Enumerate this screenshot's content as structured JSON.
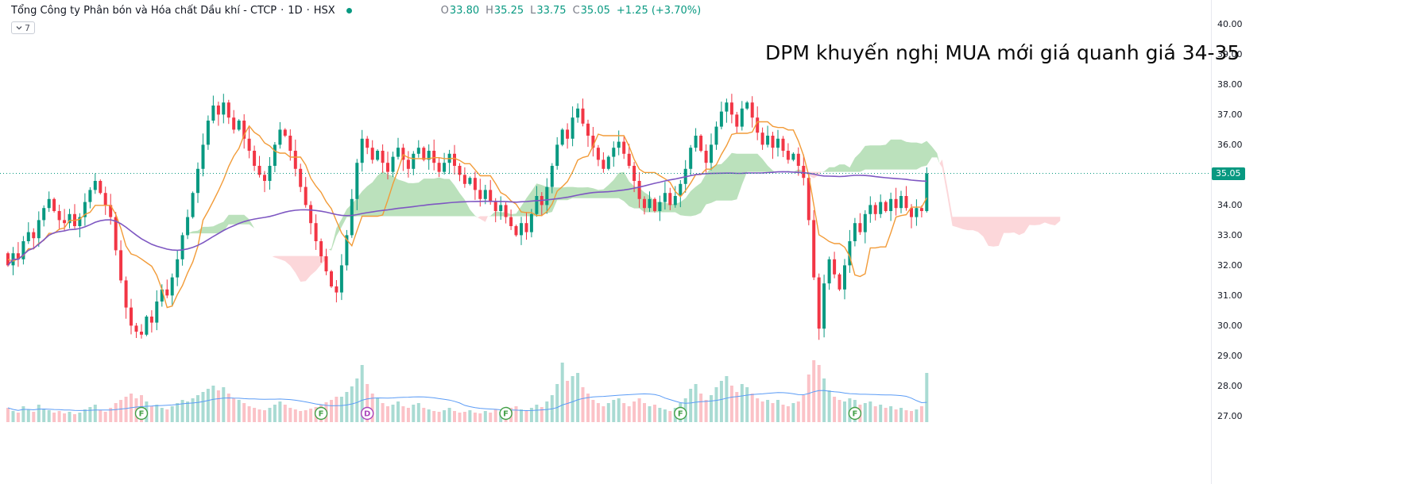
{
  "header": {
    "symbol": "Tổng Công ty Phân bón và Hóa chất Dầu khí - CTCP",
    "sep": "·",
    "timeframe": "1D",
    "exchange": "HSX",
    "indicator_count": "7",
    "ohlc": {
      "o_label": "O",
      "open": "33.80",
      "h_label": "H",
      "high": "35.25",
      "l_label": "L",
      "low": "33.75",
      "c_label": "C",
      "close": "35.05",
      "change": "+1.25 (+3.70%)"
    }
  },
  "annotation": "DPM khuyến nghị MUA mới giá quanh giá 34-35",
  "last_price": "35.05",
  "price_axis": [
    "40.00",
    "39.00",
    "38.00",
    "37.00",
    "36.00",
    "35.00",
    "34.00",
    "33.00",
    "32.00",
    "31.00",
    "30.00",
    "29.00",
    "28.00",
    "27.00"
  ],
  "colors": {
    "up": "#089981",
    "down": "#f23645",
    "vol_up": "rgba(8,153,129,0.35)",
    "vol_down": "rgba(242,54,69,0.3)",
    "cloud_up": "rgba(76,175,80,0.38)",
    "cloud_down": "rgba(242,54,69,0.2)",
    "tenkan": "#f29b38",
    "slow_ma": "#7e57c2",
    "vol_ma": "#5b9cf6",
    "last_price": "#089981",
    "marker_f": "#43a047",
    "marker_d": "#ab47bc"
  },
  "chart_data": {
    "type": "candlestick",
    "symbol": "DPM",
    "title": "Tổng Công ty Phân bón và Hóa chất Dầu khí - CTCP",
    "timeframe": "1D",
    "exchange": "HSX",
    "ylim": [
      27,
      40
    ],
    "grid": "off",
    "last": {
      "open": 33.8,
      "high": 35.25,
      "low": 33.75,
      "close": 35.05,
      "change_abs": 1.25,
      "change_pct": 3.7
    },
    "closes": [
      32.0,
      32.4,
      32.2,
      32.8,
      33.1,
      32.9,
      33.5,
      33.9,
      34.2,
      33.8,
      33.5,
      33.4,
      33.7,
      33.3,
      33.6,
      34.1,
      34.5,
      34.8,
      34.4,
      34.0,
      33.6,
      32.5,
      31.5,
      30.6,
      30.0,
      29.8,
      29.7,
      30.3,
      30.1,
      30.8,
      31.2,
      31.0,
      31.6,
      32.2,
      33.0,
      33.6,
      34.4,
      35.2,
      36.0,
      36.8,
      37.3,
      37.0,
      37.4,
      36.9,
      36.5,
      36.8,
      36.2,
      35.8,
      35.3,
      35.0,
      34.8,
      35.3,
      36.0,
      36.5,
      36.3,
      35.8,
      35.2,
      34.6,
      34.0,
      33.4,
      32.8,
      32.3,
      31.8,
      31.3,
      31.1,
      32.0,
      33.0,
      34.2,
      35.4,
      36.2,
      35.9,
      35.5,
      35.8,
      35.4,
      35.1,
      35.6,
      35.9,
      35.5,
      35.2,
      35.7,
      35.9,
      35.5,
      35.8,
      35.4,
      35.1,
      35.4,
      35.7,
      35.3,
      35.0,
      34.7,
      34.9,
      34.5,
      34.2,
      34.5,
      34.1,
      33.8,
      34.0,
      33.6,
      33.3,
      33.0,
      33.4,
      33.1,
      33.7,
      34.3,
      34.0,
      34.6,
      35.3,
      36.0,
      36.5,
      36.2,
      36.9,
      37.2,
      36.7,
      36.3,
      35.9,
      35.5,
      35.2,
      35.6,
      35.9,
      36.1,
      35.7,
      35.3,
      34.8,
      34.2,
      33.9,
      34.2,
      33.8,
      34.1,
      34.4,
      34.0,
      34.3,
      34.7,
      35.2,
      35.9,
      36.3,
      35.8,
      35.4,
      36.0,
      36.6,
      37.1,
      37.4,
      37.0,
      36.6,
      37.2,
      37.4,
      36.9,
      36.4,
      36.0,
      36.3,
      35.9,
      36.2,
      35.8,
      35.5,
      35.7,
      35.3,
      34.9,
      33.5,
      31.6,
      29.9,
      31.4,
      32.2,
      31.7,
      31.2,
      32.0,
      32.8,
      33.4,
      33.1,
      33.7,
      34.0,
      33.7,
      34.1,
      33.8,
      34.2,
      33.9,
      34.3,
      33.9,
      33.6,
      33.9,
      33.8,
      35.05
    ],
    "volumes": [
      18,
      14,
      12,
      20,
      16,
      13,
      22,
      17,
      15,
      12,
      14,
      11,
      13,
      10,
      12,
      16,
      19,
      22,
      15,
      13,
      18,
      24,
      28,
      32,
      36,
      30,
      34,
      26,
      20,
      22,
      18,
      16,
      20,
      24,
      28,
      26,
      30,
      34,
      38,
      42,
      46,
      40,
      44,
      36,
      30,
      28,
      24,
      20,
      18,
      16,
      15,
      18,
      22,
      26,
      22,
      18,
      16,
      14,
      15,
      17,
      19,
      22,
      25,
      28,
      32,
      32,
      38,
      45,
      55,
      72,
      48,
      36,
      30,
      24,
      20,
      22,
      26,
      20,
      18,
      22,
      24,
      18,
      16,
      14,
      13,
      15,
      18,
      14,
      12,
      13,
      15,
      12,
      11,
      14,
      12,
      16,
      13,
      15,
      18,
      20,
      16,
      14,
      18,
      22,
      19,
      26,
      34,
      48,
      75,
      52,
      58,
      62,
      44,
      36,
      28,
      24,
      20,
      24,
      28,
      30,
      24,
      20,
      26,
      30,
      24,
      20,
      22,
      18,
      16,
      14,
      18,
      24,
      30,
      42,
      48,
      36,
      28,
      34,
      44,
      52,
      58,
      46,
      38,
      48,
      44,
      36,
      30,
      26,
      28,
      24,
      28,
      22,
      20,
      24,
      26,
      34,
      60,
      78,
      72,
      55,
      40,
      32,
      28,
      26,
      30,
      28,
      22,
      24,
      26,
      20,
      22,
      18,
      20,
      16,
      18,
      15,
      14,
      16,
      20,
      62
    ],
    "overlays": [
      {
        "name": "ichimoku-cloud",
        "displacement": 26
      },
      {
        "name": "conversion-line",
        "period": 9,
        "color": "orange"
      },
      {
        "name": "slow-ma",
        "period": 100,
        "color": "purple"
      },
      {
        "name": "volume-ma",
        "period": 20,
        "color": "blue"
      }
    ],
    "markers": {
      "financial_report": {
        "label": "F",
        "indices": [
          26,
          61,
          97,
          131,
          165
        ]
      },
      "dividend": {
        "label": "D",
        "indices": [
          70
        ]
      }
    }
  }
}
